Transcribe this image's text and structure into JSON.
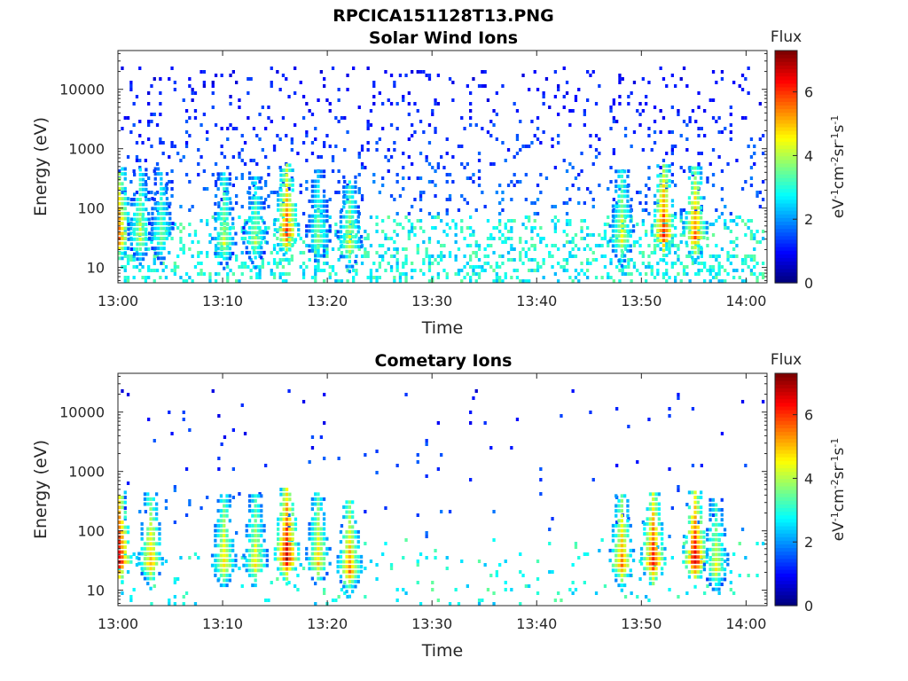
{
  "figure": {
    "title": "RPCICA151128T13.PNG"
  },
  "chart_data": [
    {
      "type": "heatmap",
      "title": "Solar Wind Ions",
      "xlabel": "Time",
      "ylabel": "Energy (eV)",
      "x_ticks": [
        "13:00",
        "13:10",
        "13:20",
        "13:30",
        "13:40",
        "13:50",
        "14:00"
      ],
      "x_range": [
        "13:00",
        "14:02"
      ],
      "y_scale": "log",
      "y_ticks": [
        "10",
        "100",
        "1000",
        "10000"
      ],
      "y_range": [
        5.5,
        45000
      ],
      "colorbar": {
        "label": "Flux",
        "unit": "eV-1cm-2sr-1s-1",
        "ticks": [
          "0",
          "2",
          "4",
          "6"
        ],
        "range": [
          0,
          7.3
        ]
      },
      "hotspots": [
        {
          "t": "13:00",
          "e": 33,
          "flux": 6.0
        },
        {
          "t": "13:02",
          "e": 32,
          "flux": 4.5
        },
        {
          "t": "13:04",
          "e": 33,
          "flux": 4.0
        },
        {
          "t": "13:10",
          "e": 27,
          "flux": 4.5
        },
        {
          "t": "13:13",
          "e": 28,
          "flux": 4.2
        },
        {
          "t": "13:16",
          "e": 38,
          "flux": 6.3
        },
        {
          "t": "13:19",
          "e": 30,
          "flux": 4.0
        },
        {
          "t": "13:22",
          "e": 24,
          "flux": 4.7
        },
        {
          "t": "13:48",
          "e": 30,
          "flux": 4.8
        },
        {
          "t": "13:52",
          "e": 37,
          "flux": 6.6
        },
        {
          "t": "13:55",
          "e": 34,
          "flux": 6.0
        }
      ]
    },
    {
      "type": "heatmap",
      "title": "Cometary Ions",
      "xlabel": "Time",
      "ylabel": "Energy (eV)",
      "x_ticks": [
        "13:00",
        "13:10",
        "13:20",
        "13:30",
        "13:40",
        "13:50",
        "14:00"
      ],
      "x_range": [
        "13:00",
        "14:02"
      ],
      "y_scale": "log",
      "y_ticks": [
        "10",
        "100",
        "1000",
        "10000"
      ],
      "y_range": [
        5.5,
        45000
      ],
      "colorbar": {
        "label": "Flux",
        "unit": "eV-1cm-2sr-1s-1",
        "ticks": [
          "0",
          "2",
          "4",
          "6"
        ],
        "range": [
          0,
          7.3
        ]
      },
      "hotspots": [
        {
          "t": "13:00",
          "e": 32,
          "flux": 7.0
        },
        {
          "t": "13:03",
          "e": 30,
          "flux": 5.5
        },
        {
          "t": "13:10",
          "e": 28,
          "flux": 5.2
        },
        {
          "t": "13:13",
          "e": 28,
          "flux": 5.0
        },
        {
          "t": "13:16",
          "e": 36,
          "flux": 7.2
        },
        {
          "t": "13:19",
          "e": 30,
          "flux": 5.2
        },
        {
          "t": "13:22",
          "e": 22,
          "flux": 5.8
        },
        {
          "t": "13:48",
          "e": 28,
          "flux": 5.8
        },
        {
          "t": "13:51",
          "e": 30,
          "flux": 6.7
        },
        {
          "t": "13:55",
          "e": 32,
          "flux": 7.0
        },
        {
          "t": "13:57",
          "e": 24,
          "flux": 4.8
        }
      ]
    }
  ]
}
